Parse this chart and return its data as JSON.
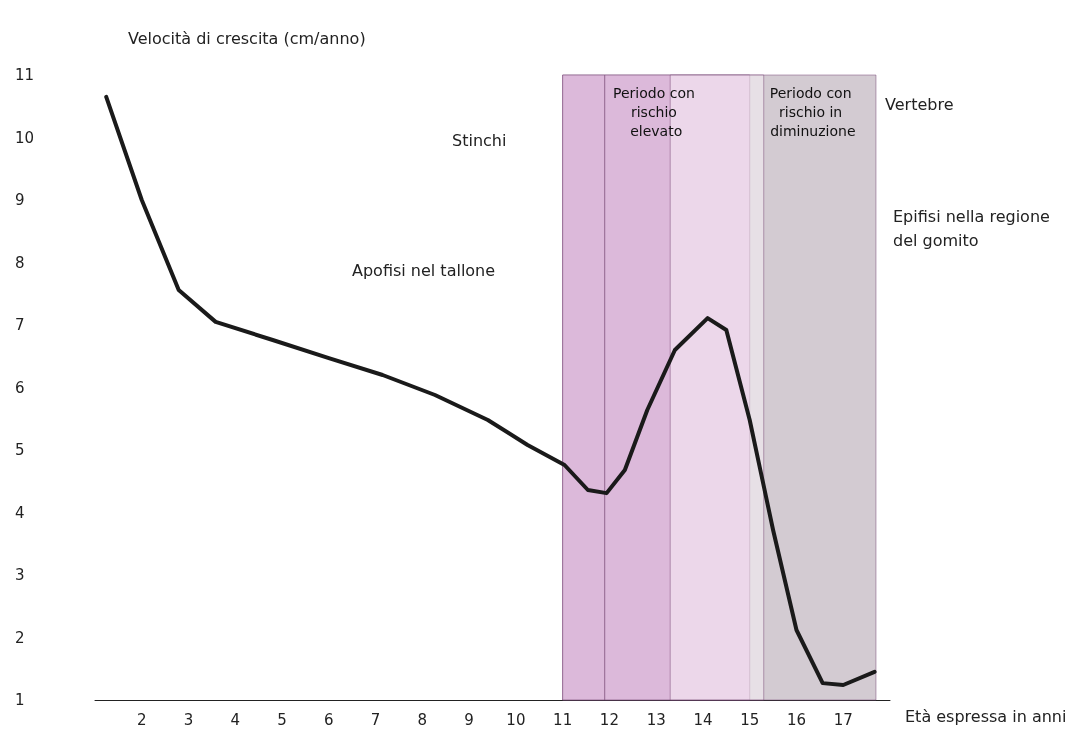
{
  "chart_data": {
    "type": "line",
    "ylabel": "Velocità di crescita (cm/anno)",
    "xlabel": "Età espressa in anni",
    "x": [
      1.24,
      2,
      2.79,
      3.58,
      4.8,
      6,
      7.15,
      8.27,
      9.4,
      10.25,
      11.04,
      11.54,
      11.94,
      12.33,
      12.81,
      13.4,
      14.1,
      14.5,
      15,
      15.5,
      16,
      16.56,
      17,
      17.67
    ],
    "values": [
      10.65,
      9.0,
      7.56,
      7.05,
      6.76,
      6.47,
      6.2,
      5.88,
      5.48,
      5.08,
      4.76,
      4.36,
      4.31,
      4.68,
      5.64,
      6.6,
      7.11,
      6.92,
      5.48,
      3.72,
      2.12,
      1.27,
      1.24,
      1.45
    ],
    "color": "#1a1a1a",
    "marker": "none",
    "line_style": "solid",
    "grid": false,
    "xlim": [
      1,
      18
    ],
    "xticks": [
      2,
      3,
      4,
      5,
      6,
      7,
      8,
      9,
      10,
      11,
      12,
      13,
      14,
      15,
      16,
      17
    ],
    "ylim": [
      1,
      11
    ],
    "yticks": [
      1,
      2,
      3,
      4,
      5,
      6,
      7,
      8,
      9,
      10,
      11
    ],
    "bands": [
      {
        "axis": "x",
        "from": 11,
        "to": 15,
        "label": "Periodo con rischio elevato",
        "color": "#8e2a8c"
      },
      {
        "axis": "x",
        "from": 15,
        "to": 17.7,
        "label": "Periodo con rischio in diminuzione",
        "color": "#b3b3b3"
      },
      {
        "axis": "x",
        "from": 11,
        "to": 17.7,
        "color": "#f3e4f2"
      },
      {
        "axis": "x",
        "from": 11,
        "to": 11.9,
        "color": "#f7ecf6"
      },
      {
        "axis": "x",
        "from": 11.9,
        "to": 15,
        "color": "#f7ecf6"
      },
      {
        "axis": "x",
        "from": 13.3,
        "to": 15.3,
        "color": "#fbf5fa"
      }
    ],
    "annotations": [
      "Vertebre",
      "Stinchi",
      "Epifisi nella regione del gomito",
      "Apofisi nel tallone"
    ]
  }
}
